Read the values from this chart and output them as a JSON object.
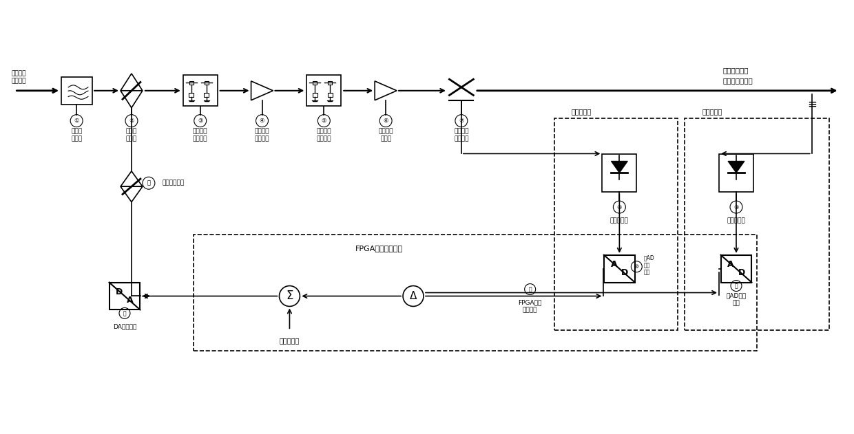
{
  "title": "",
  "bg_color": "#ffffff",
  "line_color": "#000000",
  "text_color": "#000000",
  "fig_width": 12.4,
  "fig_height": 6.31,
  "labels": {
    "input_signal": "宽带通信\n信号输入",
    "unit1": "选频滤\n波单元",
    "unit2_label": "压控衰\n减单元",
    "unit3_label": "第一阻抗\n匹配单元",
    "unit4_label": "通道补偿\n放大单元",
    "unit5_label": "第二阻抗\n匹配单元",
    "unit6_label": "高功率放\n大单元",
    "unit7_label": "宽带信号\n耦合单元",
    "unit8_label": "主检波单元",
    "unit9_label": "辅检波单元",
    "unit10_label": "主AD\n变换\n单元",
    "unit11_label": "辅AD变换\n单元",
    "unit12_label": "FPGA数据\n处理单元",
    "unit13_label": "DA控制单元",
    "unit14_label": "控制转换单元",
    "output_label": "宽带通信信号\n电平高精度输出",
    "fpga_label": "FPGA高速数据处理",
    "main_detect": "主检波电路",
    "aux_detect": "辅检波电路",
    "pre_calib": "预校准参考",
    "ground_symbol": "≡"
  }
}
